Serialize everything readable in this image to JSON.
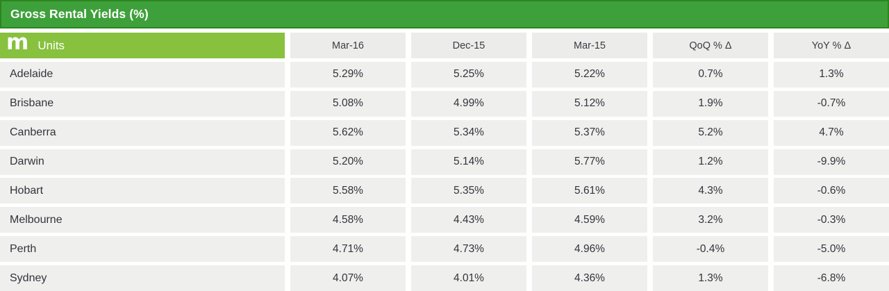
{
  "header": {
    "title": "Gross Rental Yields (%)"
  },
  "table": {
    "logo_glyph": "m",
    "group_label": "Units",
    "columns": [
      "Mar-16",
      "Dec-15",
      "Mar-15",
      "QoQ % Δ",
      "YoY % Δ"
    ]
  },
  "rows": [
    {
      "city": "Adelaide",
      "values": [
        "5.29%",
        "5.25%",
        "5.22%",
        "0.7%",
        "1.3%"
      ]
    },
    {
      "city": "Brisbane",
      "values": [
        "5.08%",
        "4.99%",
        "5.12%",
        "1.9%",
        "-0.7%"
      ]
    },
    {
      "city": "Canberra",
      "values": [
        "5.62%",
        "5.34%",
        "5.37%",
        "5.2%",
        "4.7%"
      ]
    },
    {
      "city": "Darwin",
      "values": [
        "5.20%",
        "5.14%",
        "5.77%",
        "1.2%",
        "-9.9%"
      ]
    },
    {
      "city": "Hobart",
      "values": [
        "5.58%",
        "5.35%",
        "5.61%",
        "4.3%",
        "-0.6%"
      ]
    },
    {
      "city": "Melbourne",
      "values": [
        "4.58%",
        "4.43%",
        "4.59%",
        "3.2%",
        "-0.3%"
      ]
    },
    {
      "city": "Perth",
      "values": [
        "4.71%",
        "4.73%",
        "4.96%",
        "-0.4%",
        "-5.0%"
      ]
    },
    {
      "city": "Sydney",
      "values": [
        "4.07%",
        "4.01%",
        "4.36%",
        "1.3%",
        "-6.8%"
      ]
    }
  ],
  "colors": {
    "title_bar_green": "#3EA03A",
    "title_bar_border": "#2C861F",
    "units_bar_green": "#87C13E",
    "header_cell_gray": "#ECECEA",
    "data_cell_gray": "#EFEFED",
    "text_dark": "#33333D",
    "text_white": "#FFFFFF"
  },
  "chart_data": {
    "type": "table",
    "title": "Gross Rental Yields (%)",
    "group": "Units",
    "columns": [
      "Units",
      "Mar-16",
      "Dec-15",
      "Mar-15",
      "QoQ % Δ",
      "YoY % Δ"
    ],
    "rows": [
      [
        "Adelaide",
        "5.29%",
        "5.25%",
        "5.22%",
        "0.7%",
        "1.3%"
      ],
      [
        "Brisbane",
        "5.08%",
        "4.99%",
        "5.12%",
        "1.9%",
        "-0.7%"
      ],
      [
        "Canberra",
        "5.62%",
        "5.34%",
        "5.37%",
        "5.2%",
        "4.7%"
      ],
      [
        "Darwin",
        "5.20%",
        "5.14%",
        "5.77%",
        "1.2%",
        "-9.9%"
      ],
      [
        "Hobart",
        "5.58%",
        "5.35%",
        "5.61%",
        "4.3%",
        "-0.6%"
      ],
      [
        "Melbourne",
        "4.58%",
        "4.43%",
        "4.59%",
        "3.2%",
        "-0.3%"
      ],
      [
        "Perth",
        "4.71%",
        "4.73%",
        "4.96%",
        "-0.4%",
        "-5.0%"
      ],
      [
        "Sydney",
        "4.07%",
        "4.01%",
        "4.36%",
        "1.3%",
        "-6.8%"
      ]
    ]
  }
}
